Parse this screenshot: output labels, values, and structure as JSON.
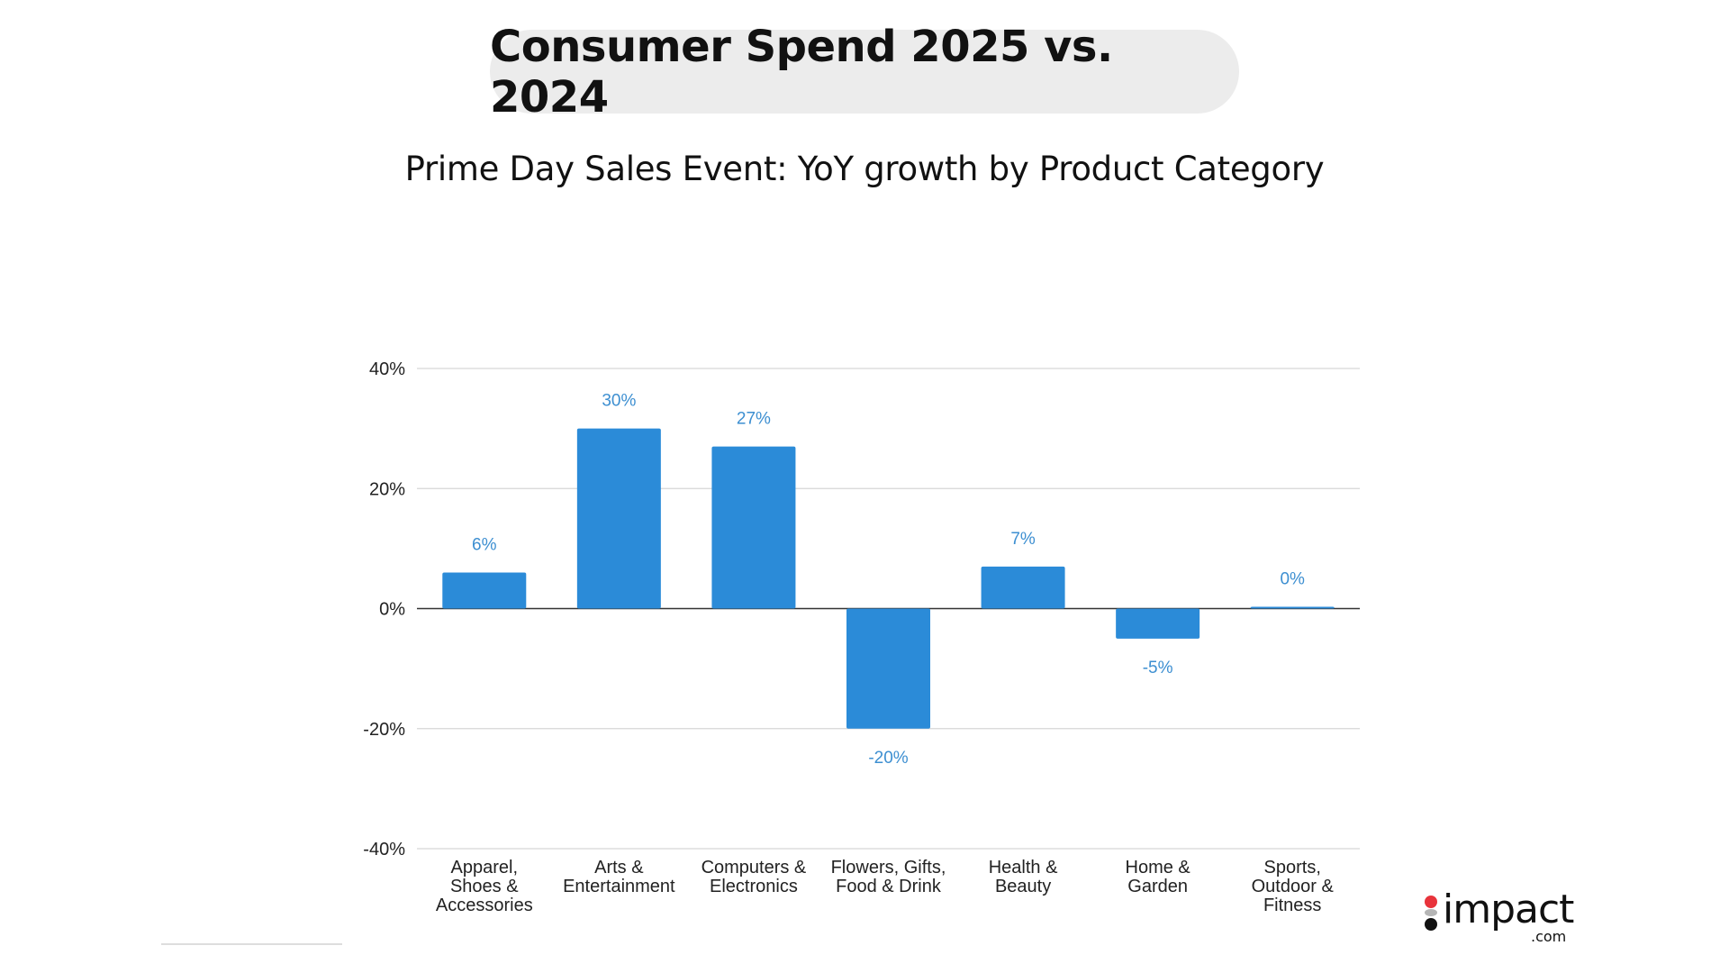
{
  "header": {
    "title": "Consumer Spend 2025 vs. 2024"
  },
  "chart_data": {
    "type": "bar",
    "title": "Prime Day Sales Event: YoY growth by Product Category",
    "xlabel": "",
    "ylabel": "",
    "categories": [
      [
        "Apparel,",
        "Shoes &",
        "Accessories"
      ],
      [
        "Arts &",
        "Entertainment"
      ],
      [
        "Computers &",
        "Electronics"
      ],
      [
        "Flowers, Gifts,",
        "Food & Drink"
      ],
      [
        "Health &",
        "Beauty"
      ],
      [
        "Home &",
        "Garden"
      ],
      [
        "Sports,",
        "Outdoor &",
        "Fitness"
      ]
    ],
    "values": [
      6,
      30,
      27,
      -20,
      7,
      -5,
      0
    ],
    "data_labels": [
      "6%",
      "30%",
      "27%",
      "-20%",
      "7%",
      "-5%",
      "0%"
    ],
    "ylim": [
      -40,
      40
    ],
    "yticks": [
      40,
      20,
      0,
      -20,
      -40
    ],
    "ytick_labels": [
      "40%",
      "20%",
      "0%",
      "-20%",
      "-40%"
    ],
    "grid": true,
    "bar_color": "#2b8bd8",
    "label_color": "#3d8fd1"
  },
  "logo": {
    "text": "impact",
    "suffix": ".com",
    "colors": [
      "#e8333b",
      "#b5b5b5",
      "#111111"
    ]
  }
}
